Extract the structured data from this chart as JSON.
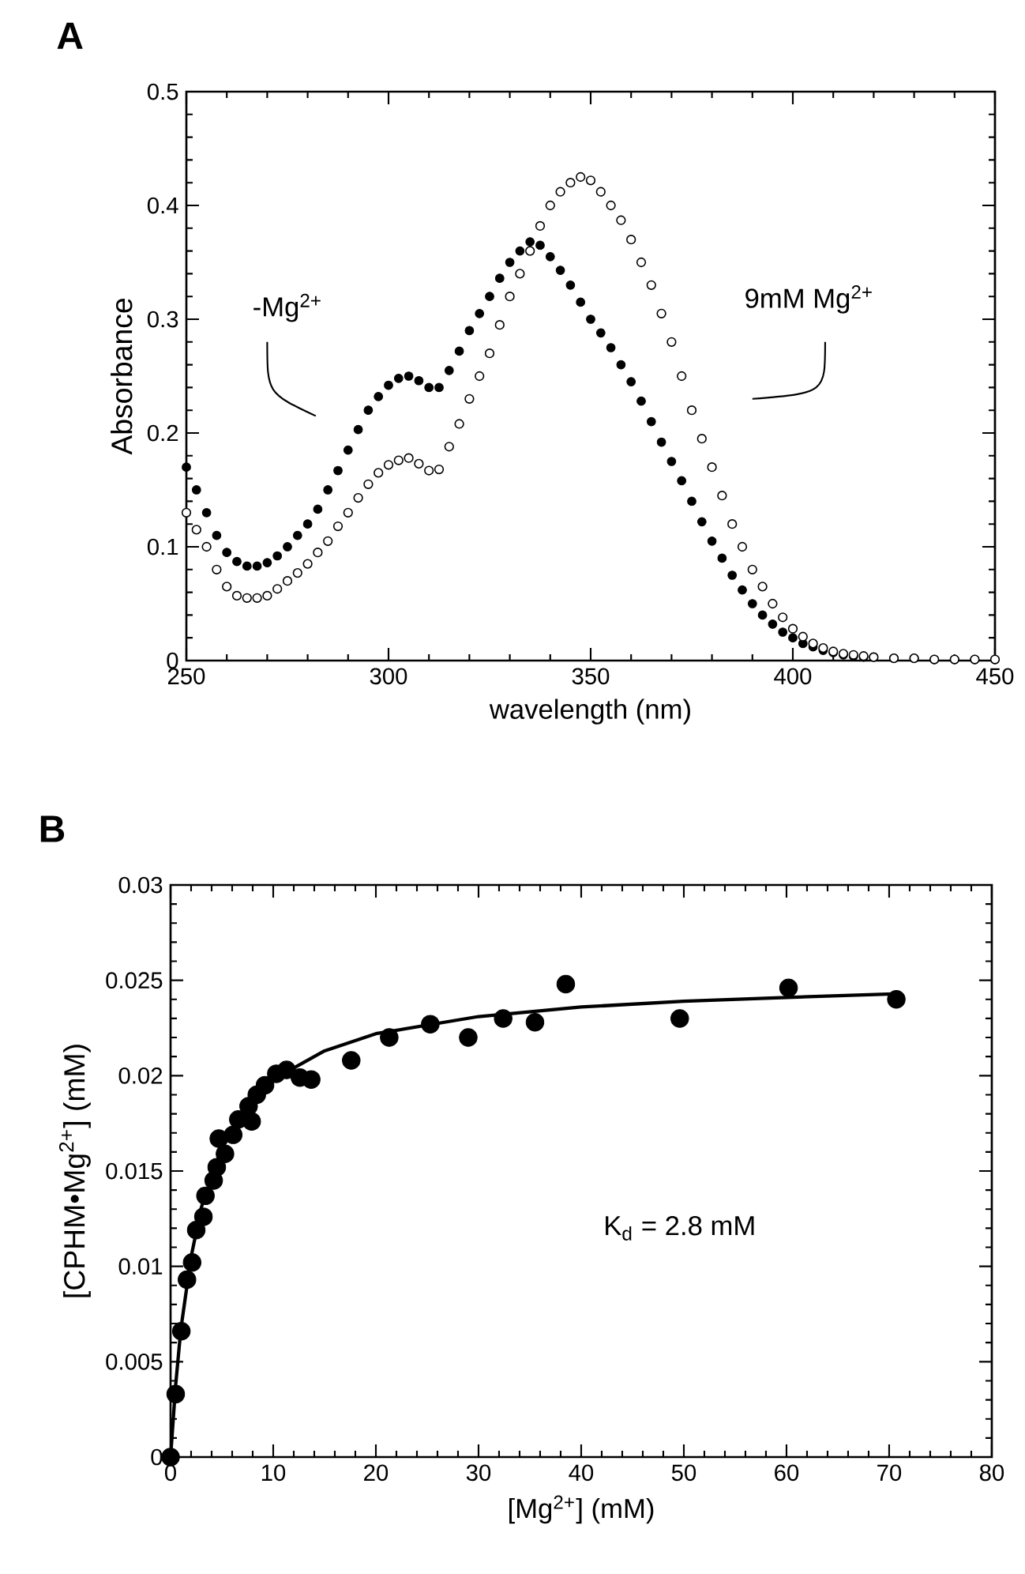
{
  "chart_data": [
    {
      "type": "scatter",
      "title": "A",
      "xlabel": "wavelength (nm)",
      "ylabel": "Absorbance",
      "xlim": [
        250,
        450
      ],
      "ylim": [
        0,
        0.5
      ],
      "xticks": [
        250,
        300,
        350,
        400,
        450
      ],
      "yticks": [
        0,
        0.1,
        0.2,
        0.3,
        0.4,
        0.5
      ],
      "marker": "circle",
      "x": [
        250,
        252.5,
        255,
        257.5,
        260,
        262.5,
        265,
        267.5,
        270,
        272.5,
        275,
        277.5,
        280,
        282.5,
        285,
        287.5,
        290,
        292.5,
        295,
        297.5,
        300,
        302.5,
        305,
        307.5,
        310,
        312.5,
        315,
        317.5,
        320,
        322.5,
        325,
        327.5,
        330,
        332.5,
        335,
        337.5,
        340,
        342.5,
        345,
        347.5,
        350,
        352.5,
        355,
        357.5,
        360,
        362.5,
        365,
        367.5,
        370,
        372.5,
        375,
        377.5,
        380,
        382.5,
        385,
        387.5,
        390,
        392.5,
        395,
        397.5,
        400,
        402.5,
        405,
        407.5,
        410,
        412.5,
        415,
        417.5,
        420,
        425,
        430,
        435,
        440,
        445,
        450
      ],
      "series": [
        {
          "name": "-Mg$^{2+}$",
          "color": "#000000",
          "values": [
            0.17,
            0.15,
            0.13,
            0.11,
            0.095,
            0.087,
            0.083,
            0.083,
            0.086,
            0.092,
            0.1,
            0.11,
            0.12,
            0.133,
            0.15,
            0.167,
            0.185,
            0.203,
            0.22,
            0.232,
            0.242,
            0.248,
            0.25,
            0.246,
            0.24,
            0.24,
            0.255,
            0.272,
            0.29,
            0.305,
            0.32,
            0.336,
            0.35,
            0.36,
            0.368,
            0.365,
            0.355,
            0.343,
            0.33,
            0.315,
            0.3,
            0.288,
            0.275,
            0.26,
            0.245,
            0.228,
            0.21,
            0.192,
            0.175,
            0.158,
            0.14,
            0.122,
            0.105,
            0.09,
            0.075,
            0.062,
            0.05,
            0.04,
            0.032,
            0.025,
            0.02,
            0.015,
            0.012,
            0.009,
            0.007,
            0.005,
            0.004,
            0.003,
            0.003,
            0.002,
            0.002,
            0.001,
            0.001,
            0.001,
            0.001
          ]
        },
        {
          "name": "9mM Mg$^{2+}$",
          "color": "#000000",
          "values": [
            0.13,
            0.115,
            0.1,
            0.08,
            0.065,
            0.057,
            0.055,
            0.055,
            0.057,
            0.063,
            0.07,
            0.077,
            0.085,
            0.095,
            0.105,
            0.118,
            0.13,
            0.143,
            0.155,
            0.165,
            0.172,
            0.176,
            0.178,
            0.173,
            0.167,
            0.168,
            0.188,
            0.208,
            0.23,
            0.25,
            0.27,
            0.295,
            0.32,
            0.34,
            0.36,
            0.382,
            0.4,
            0.412,
            0.42,
            0.425,
            0.422,
            0.412,
            0.4,
            0.387,
            0.37,
            0.35,
            0.33,
            0.305,
            0.28,
            0.25,
            0.22,
            0.195,
            0.17,
            0.145,
            0.12,
            0.1,
            0.08,
            0.065,
            0.05,
            0.038,
            0.028,
            0.021,
            0.015,
            0.011,
            0.008,
            0.006,
            0.005,
            0.004,
            0.003,
            0.002,
            0.002,
            0.001,
            0.001,
            0.001,
            0.001
          ]
        }
      ]
    },
    {
      "type": "scatter",
      "title": "B",
      "xlabel": "[Mg$^{2+}$] (mM)",
      "ylabel": "[CPHM•Mg$^{2+}$] (mM)",
      "xlim": [
        0,
        80
      ],
      "ylim": [
        0,
        0.03
      ],
      "xticks": [
        0,
        10,
        20,
        30,
        40,
        50,
        60,
        70,
        80
      ],
      "yticks": [
        0,
        0.005,
        0.01,
        0.015,
        0.02,
        0.025,
        0.03
      ],
      "annotations": [
        "K$_{d}$ = 2.8 mM"
      ],
      "series": [
        {
          "type": "scatter",
          "marker": "circle",
          "color": "#000000",
          "x": [
            0,
            0.5,
            1.05,
            1.6,
            2.1,
            2.5,
            3.2,
            3.4,
            4.2,
            4.5,
            4.7,
            5.3,
            6.1,
            6.6,
            7.6,
            7.9,
            8.4,
            9.2,
            10.3,
            11.3,
            12.6,
            13.7,
            17.6,
            21.3,
            25.3,
            29.0,
            32.4,
            35.5,
            38.5,
            49.6,
            60.2,
            70.7
          ],
          "values": [
            0,
            0.0033,
            0.0066,
            0.0093,
            0.0102,
            0.0119,
            0.0126,
            0.0137,
            0.0145,
            0.0152,
            0.0167,
            0.0159,
            0.0169,
            0.0177,
            0.0184,
            0.0176,
            0.019,
            0.0195,
            0.0201,
            0.0203,
            0.0199,
            0.0198,
            0.0208,
            0.022,
            0.0227,
            0.022,
            0.023,
            0.0228,
            0.0248,
            0.023,
            0.0246,
            0.024
          ]
        },
        {
          "type": "line",
          "color": "#000000",
          "x": [
            0,
            0.5,
            1,
            2,
            3,
            5,
            7.5,
            10,
            15,
            20,
            30,
            40,
            50,
            60,
            71
          ],
          "values": [
            0,
            0.0038,
            0.0067,
            0.0105,
            0.0131,
            0.0162,
            0.0184,
            0.0198,
            0.0213,
            0.0222,
            0.0231,
            0.0236,
            0.0239,
            0.0241,
            0.0243
          ]
        }
      ]
    }
  ]
}
